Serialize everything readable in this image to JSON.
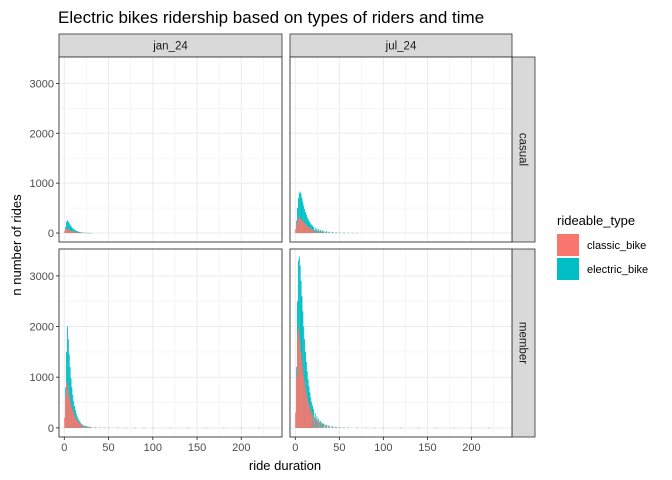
{
  "chart_data": {
    "type": "bar",
    "title": "Electric bikes ridership based on types of riders and time",
    "xlabel": "ride duration",
    "ylabel": "n number of rides",
    "xlim": [
      -6,
      246
    ],
    "ylim": [
      -180,
      3530
    ],
    "x_ticks": [
      0,
      50,
      100,
      150,
      200
    ],
    "y_ticks": [
      0,
      1000,
      2000,
      3000
    ],
    "facet_cols": [
      "jan_24",
      "jul_24"
    ],
    "facet_rows": [
      "casual",
      "member"
    ],
    "grid": true,
    "legend": {
      "title": "rideable_type",
      "position": "right",
      "entries": [
        {
          "name": "classic_bike",
          "color": "#F8766D"
        },
        {
          "name": "electric_bike",
          "color": "#00BFC4"
        }
      ]
    },
    "series_names": [
      "classic_bike",
      "electric_bike"
    ],
    "panels": [
      {
        "col": "jan_24",
        "row": "casual",
        "x": [
          1,
          2,
          3,
          4,
          5,
          6,
          7,
          8,
          9,
          10,
          11,
          12,
          13,
          14,
          15,
          16,
          17,
          18,
          19,
          20,
          22,
          24,
          26,
          28,
          30
        ],
        "classic_bike": [
          40,
          70,
          90,
          80,
          70,
          60,
          55,
          45,
          40,
          35,
          30,
          25,
          22,
          18,
          15,
          12,
          10,
          8,
          7,
          6,
          5,
          4,
          3,
          2,
          2
        ],
        "electric_bike": [
          120,
          220,
          260,
          230,
          200,
          170,
          140,
          115,
          95,
          80,
          65,
          55,
          45,
          38,
          30,
          25,
          20,
          16,
          13,
          10,
          8,
          6,
          4,
          3,
          2
        ]
      },
      {
        "col": "jul_24",
        "row": "casual",
        "x": [
          1,
          2,
          3,
          4,
          5,
          6,
          7,
          8,
          9,
          10,
          11,
          12,
          13,
          14,
          15,
          16,
          17,
          18,
          19,
          20,
          22,
          24,
          26,
          28,
          30,
          32,
          35,
          38,
          42,
          46,
          50,
          55,
          60,
          65,
          70
        ],
        "classic_bike": [
          80,
          150,
          250,
          300,
          320,
          300,
          280,
          260,
          240,
          220,
          200,
          180,
          160,
          140,
          125,
          110,
          100,
          90,
          80,
          70,
          60,
          50,
          42,
          35,
          30,
          25,
          20,
          16,
          12,
          10,
          8,
          6,
          5,
          4,
          3
        ],
        "electric_bike": [
          250,
          500,
          700,
          800,
          830,
          780,
          700,
          620,
          550,
          480,
          420,
          370,
          320,
          280,
          245,
          215,
          190,
          165,
          145,
          125,
          105,
          90,
          75,
          62,
          52,
          44,
          36,
          28,
          22,
          16,
          12,
          9,
          6,
          4,
          3
        ]
      },
      {
        "col": "jan_24",
        "row": "member",
        "x": [
          1,
          2,
          3,
          4,
          5,
          6,
          7,
          8,
          9,
          10,
          11,
          12,
          13,
          14,
          15,
          16,
          17,
          18,
          19,
          20,
          22,
          24,
          26,
          28,
          30,
          35,
          40,
          45,
          50,
          60,
          70,
          80,
          90,
          100,
          120,
          140,
          160,
          180,
          200,
          220
        ],
        "classic_bike": [
          200,
          600,
          900,
          850,
          750,
          650,
          560,
          480,
          410,
          350,
          300,
          250,
          210,
          180,
          150,
          125,
          105,
          90,
          75,
          62,
          50,
          40,
          32,
          26,
          20,
          14,
          10,
          7,
          5,
          4,
          3,
          2,
          2,
          2,
          1,
          1,
          1,
          1,
          1,
          1
        ],
        "electric_bike": [
          800,
          1500,
          2000,
          1750,
          1450,
          1200,
          980,
          800,
          650,
          530,
          430,
          350,
          285,
          230,
          185,
          150,
          120,
          95,
          75,
          60,
          45,
          34,
          26,
          20,
          15,
          10,
          7,
          5,
          4,
          3,
          2,
          2,
          2,
          1,
          1,
          1,
          1,
          1,
          1,
          1
        ]
      },
      {
        "col": "jul_24",
        "row": "member",
        "x": [
          1,
          2,
          3,
          4,
          5,
          6,
          7,
          8,
          9,
          10,
          11,
          12,
          13,
          14,
          15,
          16,
          17,
          18,
          19,
          20,
          22,
          24,
          26,
          28,
          30,
          32,
          35,
          38,
          42,
          46,
          50,
          55,
          60,
          70,
          80,
          90,
          100,
          120,
          140,
          160,
          180,
          200,
          220
        ],
        "classic_bike": [
          300,
          1000,
          1800,
          2000,
          1900,
          1700,
          1500,
          1350,
          1200,
          1050,
          920,
          800,
          700,
          610,
          530,
          460,
          400,
          345,
          300,
          260,
          210,
          170,
          140,
          115,
          95,
          78,
          60,
          45,
          32,
          22,
          15,
          10,
          7,
          5,
          3,
          2,
          2,
          1,
          1,
          1,
          1,
          1,
          1
        ],
        "electric_bike": [
          1200,
          2500,
          3300,
          3380,
          3200,
          2900,
          2600,
          2300,
          2000,
          1750,
          1500,
          1300,
          1120,
          960,
          820,
          700,
          600,
          510,
          440,
          375,
          290,
          225,
          175,
          135,
          105,
          82,
          60,
          44,
          30,
          20,
          13,
          9,
          6,
          4,
          3,
          2,
          2,
          1,
          1,
          1,
          1,
          1,
          1
        ]
      }
    ]
  }
}
